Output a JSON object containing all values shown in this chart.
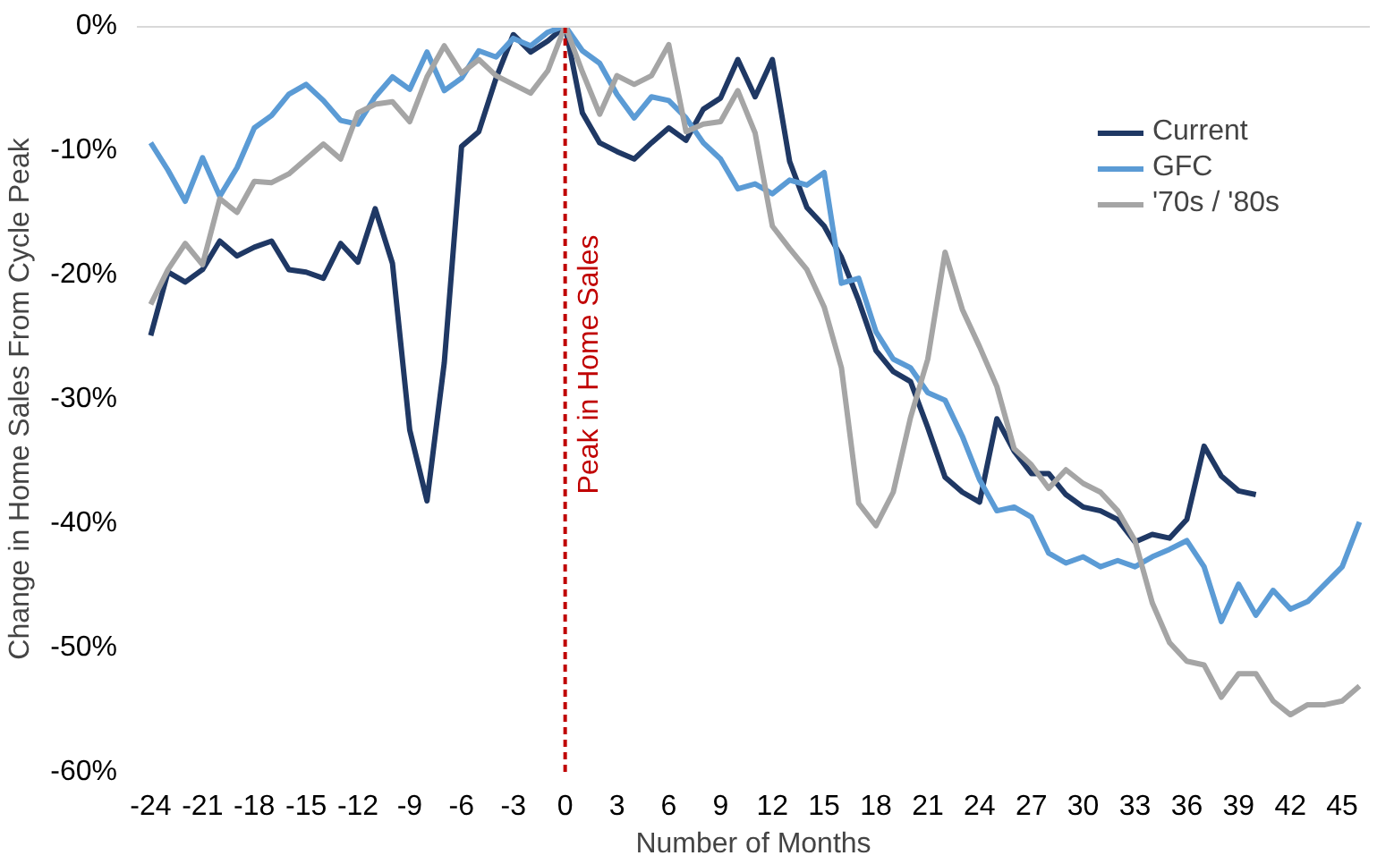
{
  "chart_data": {
    "type": "line",
    "xlabel": "Number of Months",
    "ylabel": "Change in Home Sales From Cycle Peak",
    "x": [
      -24,
      -23,
      -22,
      -21,
      -20,
      -19,
      -18,
      -17,
      -16,
      -15,
      -14,
      -13,
      -12,
      -11,
      -10,
      -9,
      -8,
      -7,
      -6,
      -5,
      -4,
      -3,
      -2,
      -1,
      0,
      1,
      2,
      3,
      4,
      5,
      6,
      7,
      8,
      9,
      10,
      11,
      12,
      13,
      14,
      15,
      16,
      17,
      18,
      19,
      20,
      21,
      22,
      23,
      24,
      25,
      26,
      27,
      28,
      29,
      30,
      31,
      32,
      33,
      34,
      35,
      36,
      37,
      38,
      39,
      40,
      41,
      42,
      43,
      44,
      45,
      46
    ],
    "series": [
      {
        "name": "Current",
        "color": "#1f3864",
        "values": [
          -24.9,
          -19.8,
          -20.6,
          -19.6,
          -17.3,
          -18.5,
          -17.8,
          -17.3,
          -19.6,
          -19.8,
          -20.3,
          -17.5,
          -19.0,
          -14.7,
          -19.1,
          -32.5,
          -38.2,
          -27.1,
          -9.7,
          -8.5,
          -4.2,
          -0.7,
          -2.1,
          -1.2,
          0,
          -7.0,
          -9.4,
          -10.1,
          -10.7,
          -9.4,
          -8.2,
          -9.2,
          -6.7,
          -5.8,
          -2.7,
          -5.7,
          -2.7,
          -10.9,
          -14.6,
          -16.1,
          -18.6,
          -22.1,
          -26.1,
          -27.8,
          -28.6,
          -32.3,
          -36.3,
          -37.5,
          -38.3,
          -31.6,
          -34.2,
          -36.0,
          -36.0,
          -37.7,
          -38.7,
          -39.0,
          -39.7,
          -41.5,
          -40.9,
          -41.2,
          -39.7,
          -33.8,
          -36.2,
          -37.4,
          -37.7,
          null,
          null,
          null,
          null,
          null,
          null
        ]
      },
      {
        "name": "GFC",
        "color": "#5b9bd5",
        "values": [
          -9.4,
          -11.6,
          -14.1,
          -10.6,
          -13.7,
          -11.4,
          -8.2,
          -7.2,
          -5.5,
          -4.7,
          -6.0,
          -7.6,
          -7.9,
          -5.7,
          -4.1,
          -5.1,
          -2.1,
          -5.2,
          -4.2,
          -2.0,
          -2.5,
          -1.0,
          -1.6,
          -0.5,
          0,
          -2.0,
          -3.0,
          -5.5,
          -7.4,
          -5.7,
          -6.0,
          -7.4,
          -9.4,
          -10.7,
          -13.1,
          -12.7,
          -13.5,
          -12.4,
          -12.8,
          -11.8,
          -20.7,
          -20.3,
          -24.6,
          -26.8,
          -27.5,
          -29.5,
          -30.1,
          -33.0,
          -36.5,
          -39.0,
          -38.7,
          -39.5,
          -42.4,
          -43.2,
          -42.7,
          -43.5,
          -43.0,
          -43.5,
          -42.7,
          -42.1,
          -41.4,
          -43.5,
          -47.9,
          -44.9,
          -47.4,
          -45.4,
          -46.9,
          -46.3,
          -44.9,
          -43.5,
          -39.9
        ]
      },
      {
        "name": "'70s / '80s",
        "color": "#a5a5a5",
        "values": [
          -22.4,
          -19.6,
          -17.5,
          -19.2,
          -13.9,
          -15.0,
          -12.5,
          -12.6,
          -11.9,
          -10.7,
          -9.5,
          -10.7,
          -7.0,
          -6.3,
          -6.1,
          -7.7,
          -4.1,
          -1.6,
          -3.8,
          -2.7,
          -4.0,
          -4.7,
          -5.4,
          -3.6,
          0,
          -3.7,
          -7.1,
          -4.0,
          -4.7,
          -4.0,
          -1.5,
          -8.5,
          -7.9,
          -7.7,
          -5.2,
          -8.6,
          -16.1,
          -17.9,
          -19.6,
          -22.6,
          -27.5,
          -38.4,
          -40.2,
          -37.5,
          -31.5,
          -26.8,
          -18.2,
          -22.8,
          -25.8,
          -29.0,
          -34.0,
          -35.3,
          -37.2,
          -35.7,
          -36.8,
          -37.5,
          -39.0,
          -41.4,
          -46.4,
          -49.6,
          -51.1,
          -51.4,
          -54.0,
          -52.1,
          -52.1,
          -54.3,
          -55.4,
          -54.6,
          -54.6,
          -54.3,
          -53.1
        ]
      }
    ],
    "xlim": [
      -24.8,
      46.6
    ],
    "ylim": [
      -60,
      0
    ],
    "xticks": [
      -24,
      -21,
      -18,
      -15,
      -12,
      -9,
      -6,
      -3,
      0,
      3,
      6,
      9,
      12,
      15,
      18,
      21,
      24,
      27,
      30,
      33,
      36,
      39,
      42,
      45
    ],
    "yticks": [
      {
        "value": 0,
        "label": "0%"
      },
      {
        "value": -10,
        "label": "-10%"
      },
      {
        "value": -20,
        "label": "-20%"
      },
      {
        "value": -30,
        "label": "-30%"
      },
      {
        "value": -40,
        "label": "-40%"
      },
      {
        "value": -50,
        "label": "-50%"
      },
      {
        "value": -60,
        "label": "-60%"
      }
    ],
    "ref_lines": [
      {
        "axis": "x",
        "value": 0,
        "label": "Peak in Home Sales",
        "color": "#c00000",
        "line_style": "dashed"
      },
      {
        "axis": "y",
        "value": 0,
        "label": null,
        "color": "#d9d9d9",
        "line_style": "solid"
      }
    ],
    "grid": false,
    "legend": "top right",
    "marker": "none",
    "line_style": "solid"
  }
}
